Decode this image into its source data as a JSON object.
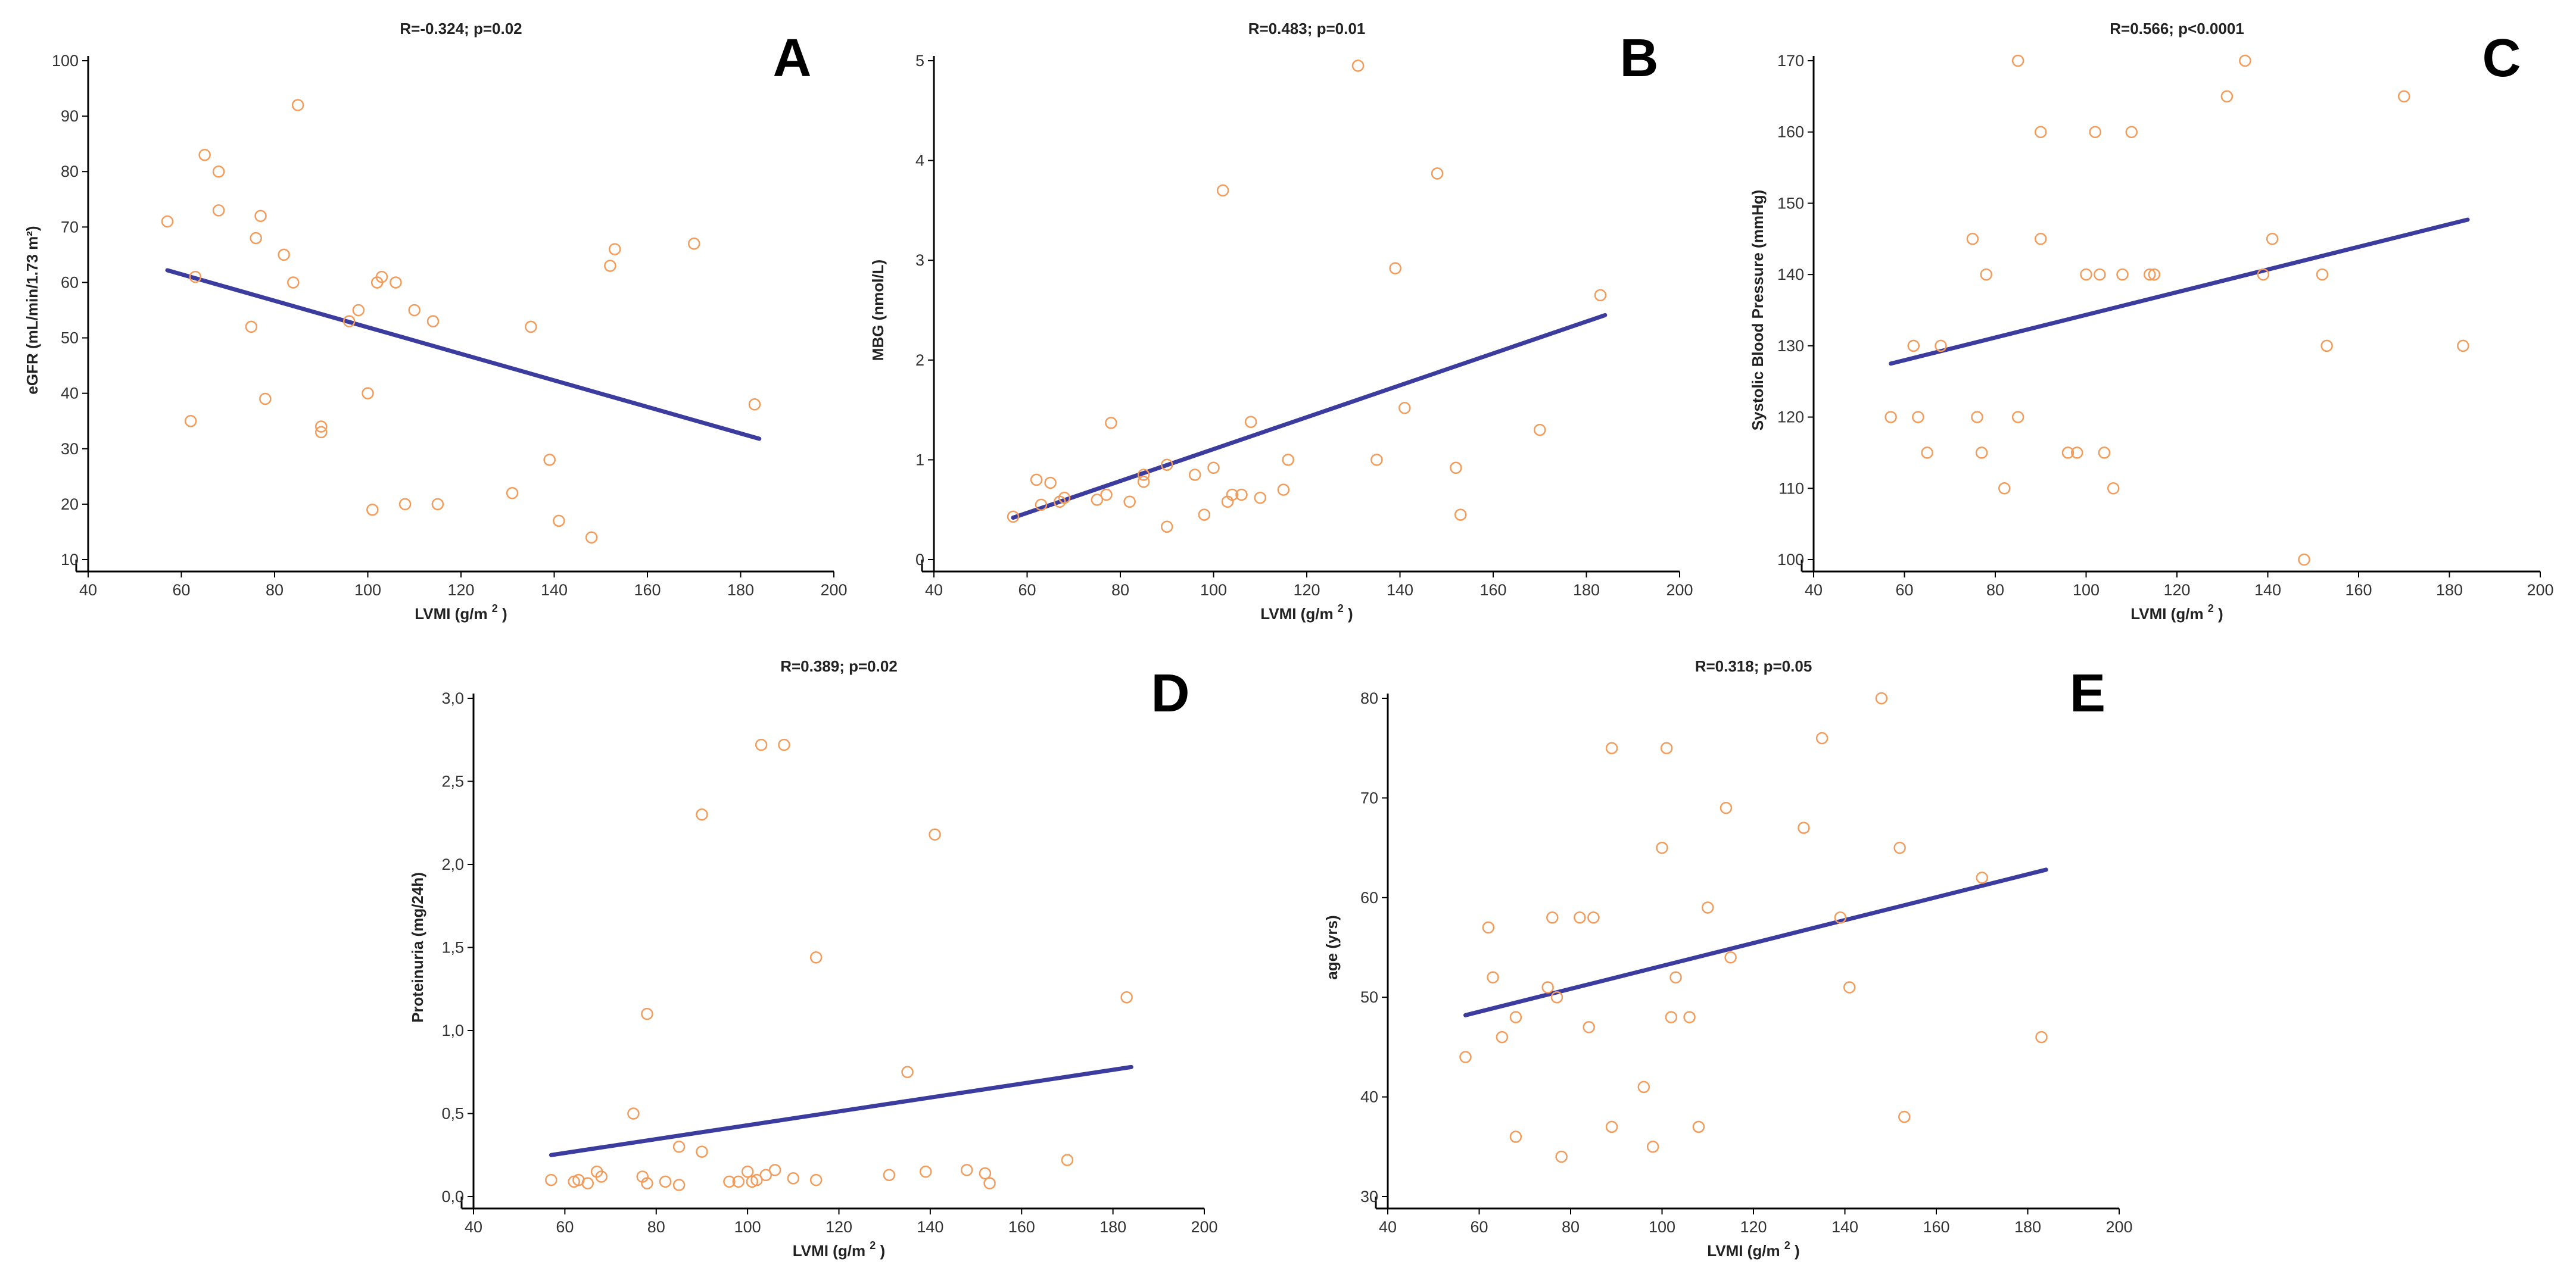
{
  "colors": {
    "point": "#f39b5a",
    "fit": "#3b3c9e",
    "axis": "#000000"
  },
  "chart_data": [
    {
      "id": "A",
      "type": "scatter",
      "panel_letter": "A",
      "title": "R=-0.324; p=0.02",
      "xlabel": "LVMI (g/m",
      "xlabel_sup": "2",
      "xlabel_end": ")",
      "ylabel": "eGFR (mL/min/1.73 m²)",
      "xlim": [
        40,
        200
      ],
      "ylim": [
        10,
        100
      ],
      "xticks": [
        40,
        60,
        80,
        100,
        120,
        140,
        160,
        180,
        200
      ],
      "yticks": [
        10,
        20,
        30,
        40,
        50,
        60,
        70,
        80,
        90,
        100
      ],
      "points": [
        [
          57,
          71
        ],
        [
          62,
          35
        ],
        [
          63,
          61
        ],
        [
          65,
          83
        ],
        [
          68,
          80
        ],
        [
          68,
          73
        ],
        [
          75,
          52
        ],
        [
          76,
          68
        ],
        [
          77,
          72
        ],
        [
          78,
          39
        ],
        [
          82,
          65
        ],
        [
          84,
          60
        ],
        [
          85,
          92
        ],
        [
          96,
          53
        ],
        [
          98,
          55
        ],
        [
          100,
          40
        ],
        [
          101,
          19
        ],
        [
          102,
          60
        ],
        [
          103,
          61
        ],
        [
          106,
          60
        ],
        [
          108,
          20
        ],
        [
          110,
          55
        ],
        [
          114,
          53
        ],
        [
          115,
          20
        ],
        [
          131,
          22
        ],
        [
          135,
          52
        ],
        [
          139,
          28
        ],
        [
          141,
          17
        ],
        [
          148,
          14
        ],
        [
          152,
          63
        ],
        [
          153,
          66
        ],
        [
          170,
          67
        ],
        [
          183,
          38
        ],
        [
          90,
          34
        ],
        [
          90,
          33
        ]
      ],
      "fit": [
        [
          57,
          62.2
        ],
        [
          184,
          31.8
        ]
      ]
    },
    {
      "id": "B",
      "type": "scatter",
      "panel_letter": "B",
      "title": "R=0.483; p=0.01",
      "xlabel": "LVMI (g/m",
      "xlabel_sup": "2",
      "xlabel_end": ")",
      "ylabel": "MBG (nmol/L)",
      "xlim": [
        40,
        200
      ],
      "ylim": [
        0,
        5
      ],
      "xticks": [
        40,
        60,
        80,
        100,
        120,
        140,
        160,
        180,
        200
      ],
      "yticks": [
        0,
        1,
        2,
        3,
        4,
        5
      ],
      "points": [
        [
          57,
          0.43
        ],
        [
          62,
          0.8
        ],
        [
          63,
          0.55
        ],
        [
          65,
          0.77
        ],
        [
          67,
          0.58
        ],
        [
          68,
          0.62
        ],
        [
          75,
          0.6
        ],
        [
          77,
          0.65
        ],
        [
          78,
          1.37
        ],
        [
          82,
          0.58
        ],
        [
          85,
          0.78
        ],
        [
          85,
          0.85
        ],
        [
          90,
          0.33
        ],
        [
          90,
          0.95
        ],
        [
          96,
          0.85
        ],
        [
          98,
          0.45
        ],
        [
          100,
          0.92
        ],
        [
          102,
          3.7
        ],
        [
          103,
          0.58
        ],
        [
          104,
          0.65
        ],
        [
          106,
          0.65
        ],
        [
          108,
          1.38
        ],
        [
          110,
          0.62
        ],
        [
          115,
          0.7
        ],
        [
          116,
          1.0
        ],
        [
          131,
          4.95
        ],
        [
          135,
          1.0
        ],
        [
          139,
          2.92
        ],
        [
          141,
          1.52
        ],
        [
          148,
          3.87
        ],
        [
          152,
          0.92
        ],
        [
          153,
          0.45
        ],
        [
          170,
          1.3
        ],
        [
          183,
          2.65
        ]
      ],
      "fit": [
        [
          57,
          0.42
        ],
        [
          184,
          2.45
        ]
      ]
    },
    {
      "id": "C",
      "type": "scatter",
      "panel_letter": "C",
      "title": "R=0.566; p<0.0001",
      "xlabel": "LVMI (g/m",
      "xlabel_sup": "2",
      "xlabel_end": ")",
      "ylabel": "Systolic Blood Pressure (mmHg)",
      "xlim": [
        40,
        200
      ],
      "ylim": [
        100,
        170
      ],
      "xticks": [
        40,
        60,
        80,
        100,
        120,
        140,
        160,
        180,
        200
      ],
      "yticks": [
        100,
        110,
        120,
        130,
        140,
        150,
        160,
        170
      ],
      "points": [
        [
          57,
          120
        ],
        [
          62,
          130
        ],
        [
          63,
          120
        ],
        [
          65,
          115
        ],
        [
          68,
          130
        ],
        [
          75,
          145
        ],
        [
          76,
          120
        ],
        [
          77,
          115
        ],
        [
          78,
          140
        ],
        [
          82,
          110
        ],
        [
          85,
          170
        ],
        [
          85,
          120
        ],
        [
          90,
          160
        ],
        [
          90,
          145
        ],
        [
          96,
          115
        ],
        [
          98,
          115
        ],
        [
          100,
          140
        ],
        [
          102,
          160
        ],
        [
          103,
          140
        ],
        [
          106,
          110
        ],
        [
          108,
          140
        ],
        [
          110,
          160
        ],
        [
          114,
          140
        ],
        [
          115,
          140
        ],
        [
          131,
          165
        ],
        [
          135,
          170
        ],
        [
          139,
          140
        ],
        [
          141,
          145
        ],
        [
          148,
          100
        ],
        [
          152,
          140
        ],
        [
          153,
          130
        ],
        [
          170,
          165
        ],
        [
          183,
          130
        ],
        [
          104,
          115
        ]
      ],
      "fit": [
        [
          57,
          127.5
        ],
        [
          184,
          147.7
        ]
      ]
    },
    {
      "id": "D",
      "type": "scatter",
      "panel_letter": "D",
      "title": "R=0.389; p=0.02",
      "xlabel": "LVMI (g/m",
      "xlabel_sup": "2",
      "xlabel_end": ")",
      "ylabel": "Proteinuria (mg/24h)",
      "xlim": [
        40,
        200
      ],
      "ylim": [
        0,
        3
      ],
      "xticks": [
        40,
        60,
        80,
        100,
        120,
        140,
        160,
        180,
        200
      ],
      "yticks": [
        0,
        0.5,
        1,
        1.5,
        2,
        2.5,
        3
      ],
      "ytick_labels": [
        "0,0",
        "0,5",
        "1,0",
        "1,5",
        "2,0",
        "2,5",
        "3,0"
      ],
      "points": [
        [
          57,
          0.1
        ],
        [
          62,
          0.09
        ],
        [
          63,
          0.1
        ],
        [
          65,
          0.08
        ],
        [
          67,
          0.15
        ],
        [
          68,
          0.12
        ],
        [
          75,
          0.5
        ],
        [
          77,
          0.12
        ],
        [
          78,
          1.1
        ],
        [
          78,
          0.08
        ],
        [
          82,
          0.09
        ],
        [
          85,
          0.3
        ],
        [
          85,
          0.07
        ],
        [
          90,
          2.3
        ],
        [
          90,
          0.27
        ],
        [
          96,
          0.09
        ],
        [
          98,
          0.09
        ],
        [
          100,
          0.15
        ],
        [
          101,
          0.09
        ],
        [
          102,
          0.1
        ],
        [
          103,
          2.72
        ],
        [
          104,
          0.13
        ],
        [
          106,
          0.16
        ],
        [
          108,
          2.72
        ],
        [
          110,
          0.11
        ],
        [
          115,
          1.44
        ],
        [
          115,
          0.1
        ],
        [
          131,
          0.13
        ],
        [
          135,
          0.75
        ],
        [
          139,
          0.15
        ],
        [
          141,
          2.18
        ],
        [
          148,
          0.16
        ],
        [
          152,
          0.14
        ],
        [
          153,
          0.08
        ],
        [
          170,
          0.22
        ],
        [
          183,
          1.2
        ]
      ],
      "fit": [
        [
          57,
          0.25
        ],
        [
          184,
          0.78
        ]
      ]
    },
    {
      "id": "E",
      "type": "scatter",
      "panel_letter": "E",
      "title": "R=0.318; p=0.05",
      "xlabel": "LVMI (g/m",
      "xlabel_sup": "2",
      "xlabel_end": ")",
      "ylabel": "age (yrs)",
      "xlim": [
        40,
        200
      ],
      "ylim": [
        30,
        80
      ],
      "xticks": [
        40,
        60,
        80,
        100,
        120,
        140,
        160,
        180,
        200
      ],
      "yticks": [
        30,
        40,
        50,
        60,
        70,
        80
      ],
      "points": [
        [
          57,
          44
        ],
        [
          62,
          57
        ],
        [
          63,
          52
        ],
        [
          65,
          46
        ],
        [
          68,
          36
        ],
        [
          68,
          48
        ],
        [
          75,
          51
        ],
        [
          76,
          58
        ],
        [
          77,
          50
        ],
        [
          78,
          34
        ],
        [
          82,
          58
        ],
        [
          84,
          47
        ],
        [
          85,
          58
        ],
        [
          89,
          75
        ],
        [
          89,
          37
        ],
        [
          96,
          41
        ],
        [
          98,
          35
        ],
        [
          100,
          65
        ],
        [
          101,
          75
        ],
        [
          102,
          48
        ],
        [
          103,
          52
        ],
        [
          106,
          48
        ],
        [
          108,
          37
        ],
        [
          110,
          59
        ],
        [
          114,
          69
        ],
        [
          115,
          54
        ],
        [
          131,
          67
        ],
        [
          135,
          76
        ],
        [
          139,
          58
        ],
        [
          141,
          51
        ],
        [
          148,
          80
        ],
        [
          152,
          65
        ],
        [
          153,
          38
        ],
        [
          170,
          62
        ],
        [
          183,
          46
        ]
      ],
      "fit": [
        [
          57,
          48.2
        ],
        [
          184,
          62.8
        ]
      ]
    }
  ]
}
